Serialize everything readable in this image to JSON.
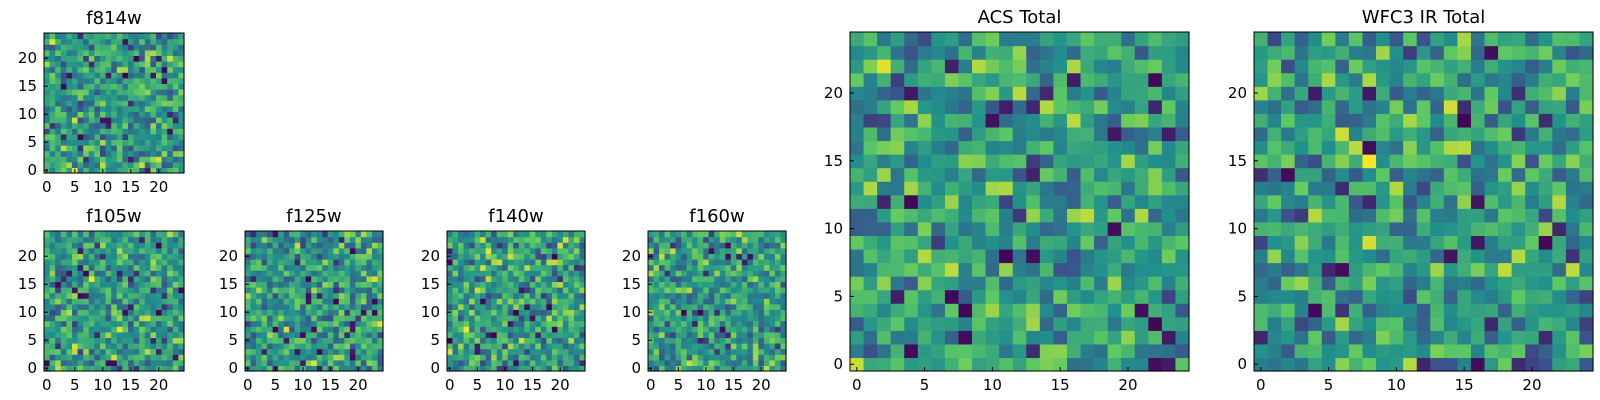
{
  "chart_data": [
    {
      "type": "heatmap",
      "title": "f814w",
      "colormap": "viridis",
      "grid_size": 25,
      "x_ticks": [
        "0",
        "5",
        "10",
        "15",
        "20"
      ],
      "y_ticks": [
        "0",
        "5",
        "10",
        "15",
        "20"
      ],
      "xlim": [
        -0.5,
        24.5
      ],
      "ylim": [
        -0.5,
        24.5
      ],
      "values": "pixel noise (per-pixel values not readable)"
    },
    {
      "type": "heatmap",
      "title": "f105w",
      "colormap": "viridis",
      "grid_size": 25,
      "x_ticks": [
        "0",
        "5",
        "10",
        "15",
        "20"
      ],
      "y_ticks": [
        "0",
        "5",
        "10",
        "15",
        "20"
      ],
      "xlim": [
        -0.5,
        24.5
      ],
      "ylim": [
        -0.5,
        24.5
      ],
      "values": "pixel noise (per-pixel values not readable)"
    },
    {
      "type": "heatmap",
      "title": "f125w",
      "colormap": "viridis",
      "grid_size": 25,
      "x_ticks": [
        "0",
        "5",
        "10",
        "15",
        "20"
      ],
      "y_ticks": [
        "0",
        "5",
        "10",
        "15",
        "20"
      ],
      "xlim": [
        -0.5,
        24.5
      ],
      "ylim": [
        -0.5,
        24.5
      ],
      "values": "pixel noise (per-pixel values not readable)"
    },
    {
      "type": "heatmap",
      "title": "f140w",
      "colormap": "viridis",
      "grid_size": 25,
      "x_ticks": [
        "0",
        "5",
        "10",
        "15",
        "20"
      ],
      "y_ticks": [
        "0",
        "5",
        "10",
        "15",
        "20"
      ],
      "xlim": [
        -0.5,
        24.5
      ],
      "ylim": [
        -0.5,
        24.5
      ],
      "values": "pixel noise (per-pixel values not readable)"
    },
    {
      "type": "heatmap",
      "title": "f160w",
      "colormap": "viridis",
      "grid_size": 25,
      "x_ticks": [
        "0",
        "5",
        "10",
        "15",
        "20"
      ],
      "y_ticks": [
        "0",
        "5",
        "10",
        "15",
        "20"
      ],
      "xlim": [
        -0.5,
        24.5
      ],
      "ylim": [
        -0.5,
        24.5
      ],
      "values": "pixel noise (per-pixel values not readable)"
    },
    {
      "type": "heatmap",
      "title": "ACS Total",
      "colormap": "viridis",
      "grid_size": 25,
      "x_ticks": [
        "0",
        "5",
        "10",
        "15",
        "20"
      ],
      "y_ticks": [
        "0",
        "5",
        "10",
        "15",
        "20"
      ],
      "xlim": [
        -0.5,
        24.5
      ],
      "ylim": [
        -0.5,
        24.5
      ],
      "values": "pixel noise (per-pixel values not readable)"
    },
    {
      "type": "heatmap",
      "title": "WFC3 IR Total",
      "colormap": "viridis",
      "grid_size": 25,
      "x_ticks": [
        "0",
        "5",
        "10",
        "15",
        "20"
      ],
      "y_ticks": [
        "0",
        "5",
        "10",
        "15",
        "20"
      ],
      "xlim": [
        -0.5,
        24.5
      ],
      "ylim": [
        -0.5,
        24.5
      ],
      "values": "pixel noise (per-pixel values not readable)"
    }
  ],
  "colors": {
    "viridis_ramp": [
      "#440154",
      "#3b528b",
      "#21918c",
      "#5ec962",
      "#fde725"
    ],
    "axes": "#000000",
    "background": "#ffffff"
  }
}
